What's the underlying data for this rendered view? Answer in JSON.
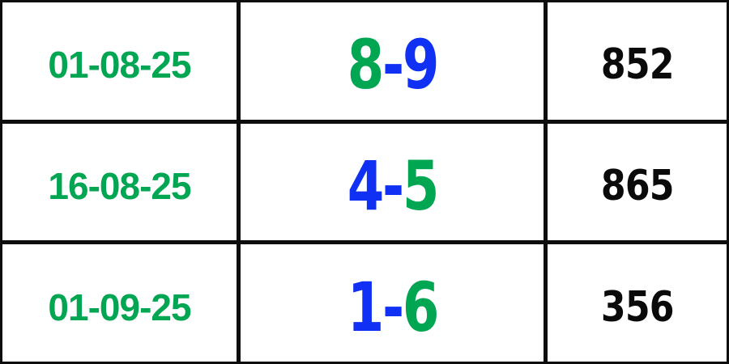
{
  "colors": {
    "green": "#00a651",
    "blue": "#1031f3",
    "result_text": "#0a0a0a",
    "grid_line": "#0d0d0d",
    "cell_background": "#ffffff"
  },
  "table": {
    "columns": [
      "date",
      "pair",
      "result"
    ],
    "rows": [
      {
        "date": "01-08-25",
        "pair": [
          {
            "text": "8",
            "color": "green"
          },
          {
            "text": "-",
            "color": "blue"
          },
          {
            "text": "9",
            "color": "blue"
          }
        ],
        "result": "852"
      },
      {
        "date": "16-08-25",
        "pair": [
          {
            "text": "4",
            "color": "blue"
          },
          {
            "text": "-",
            "color": "blue"
          },
          {
            "text": "5",
            "color": "green"
          }
        ],
        "result": "865"
      },
      {
        "date": "01-09-25",
        "pair": [
          {
            "text": "1",
            "color": "blue"
          },
          {
            "text": "-",
            "color": "blue"
          },
          {
            "text": "6",
            "color": "green"
          }
        ],
        "result": "356"
      }
    ]
  }
}
